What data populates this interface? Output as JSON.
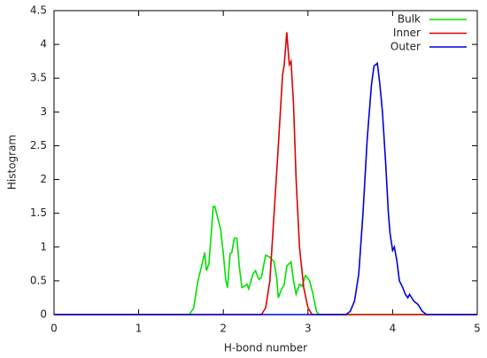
{
  "chart_data": {
    "type": "line",
    "x_label": "H-bond number",
    "y_label": "Histogram",
    "xlim": [
      0,
      5
    ],
    "ylim": [
      0,
      4.5
    ],
    "xticks": [
      0,
      1,
      2,
      3,
      4,
      5
    ],
    "yticks": [
      0,
      0.5,
      1,
      1.5,
      2,
      2.5,
      3,
      3.5,
      4,
      4.5
    ],
    "legend": "top-right",
    "series": [
      {
        "name": "Bulk",
        "color": "#00e000",
        "x": [
          0,
          1.6,
          1.65,
          1.7,
          1.75,
          1.78,
          1.8,
          1.83,
          1.86,
          1.88,
          1.9,
          1.93,
          1.97,
          2.0,
          2.03,
          2.05,
          2.08,
          2.1,
          2.13,
          2.16,
          2.19,
          2.22,
          2.25,
          2.28,
          2.3,
          2.35,
          2.38,
          2.42,
          2.45,
          2.5,
          2.55,
          2.6,
          2.63,
          2.65,
          2.68,
          2.72,
          2.75,
          2.8,
          2.83,
          2.86,
          2.9,
          2.93,
          2.97,
          3.02,
          3.06,
          3.1,
          3.13,
          5
        ],
        "values": [
          0,
          0,
          0.1,
          0.5,
          0.75,
          0.92,
          0.65,
          0.75,
          1.25,
          1.6,
          1.6,
          1.45,
          1.25,
          0.9,
          0.5,
          0.4,
          0.9,
          0.92,
          1.13,
          1.13,
          0.7,
          0.4,
          0.42,
          0.45,
          0.38,
          0.6,
          0.65,
          0.52,
          0.55,
          0.88,
          0.85,
          0.78,
          0.55,
          0.25,
          0.35,
          0.45,
          0.72,
          0.78,
          0.5,
          0.3,
          0.45,
          0.42,
          0.58,
          0.5,
          0.3,
          0.05,
          0,
          0
        ]
      },
      {
        "name": "Inner",
        "color": "#e00000",
        "x": [
          0,
          2.45,
          2.5,
          2.55,
          2.6,
          2.65,
          2.7,
          2.72,
          2.75,
          2.77,
          2.78,
          2.8,
          2.83,
          2.86,
          2.9,
          2.95,
          3.0,
          3.05,
          5
        ],
        "values": [
          0,
          0,
          0.1,
          0.5,
          1.5,
          2.5,
          3.55,
          3.7,
          4.18,
          3.85,
          3.7,
          3.75,
          3.1,
          2.0,
          1.0,
          0.4,
          0.1,
          0,
          0
        ]
      },
      {
        "name": "Outer",
        "color": "#0000e0",
        "x": [
          0,
          3.45,
          3.5,
          3.55,
          3.6,
          3.65,
          3.7,
          3.75,
          3.78,
          3.82,
          3.85,
          3.88,
          3.92,
          3.95,
          3.97,
          4.0,
          4.02,
          4.05,
          4.08,
          4.12,
          4.15,
          4.18,
          4.2,
          4.25,
          4.3,
          4.35,
          4.4,
          5
        ],
        "values": [
          0,
          0,
          0.05,
          0.2,
          0.6,
          1.5,
          2.6,
          3.4,
          3.68,
          3.72,
          3.4,
          3.0,
          2.2,
          1.5,
          1.2,
          0.95,
          1.0,
          0.8,
          0.5,
          0.4,
          0.3,
          0.25,
          0.3,
          0.2,
          0.15,
          0.05,
          0,
          0
        ]
      }
    ]
  }
}
